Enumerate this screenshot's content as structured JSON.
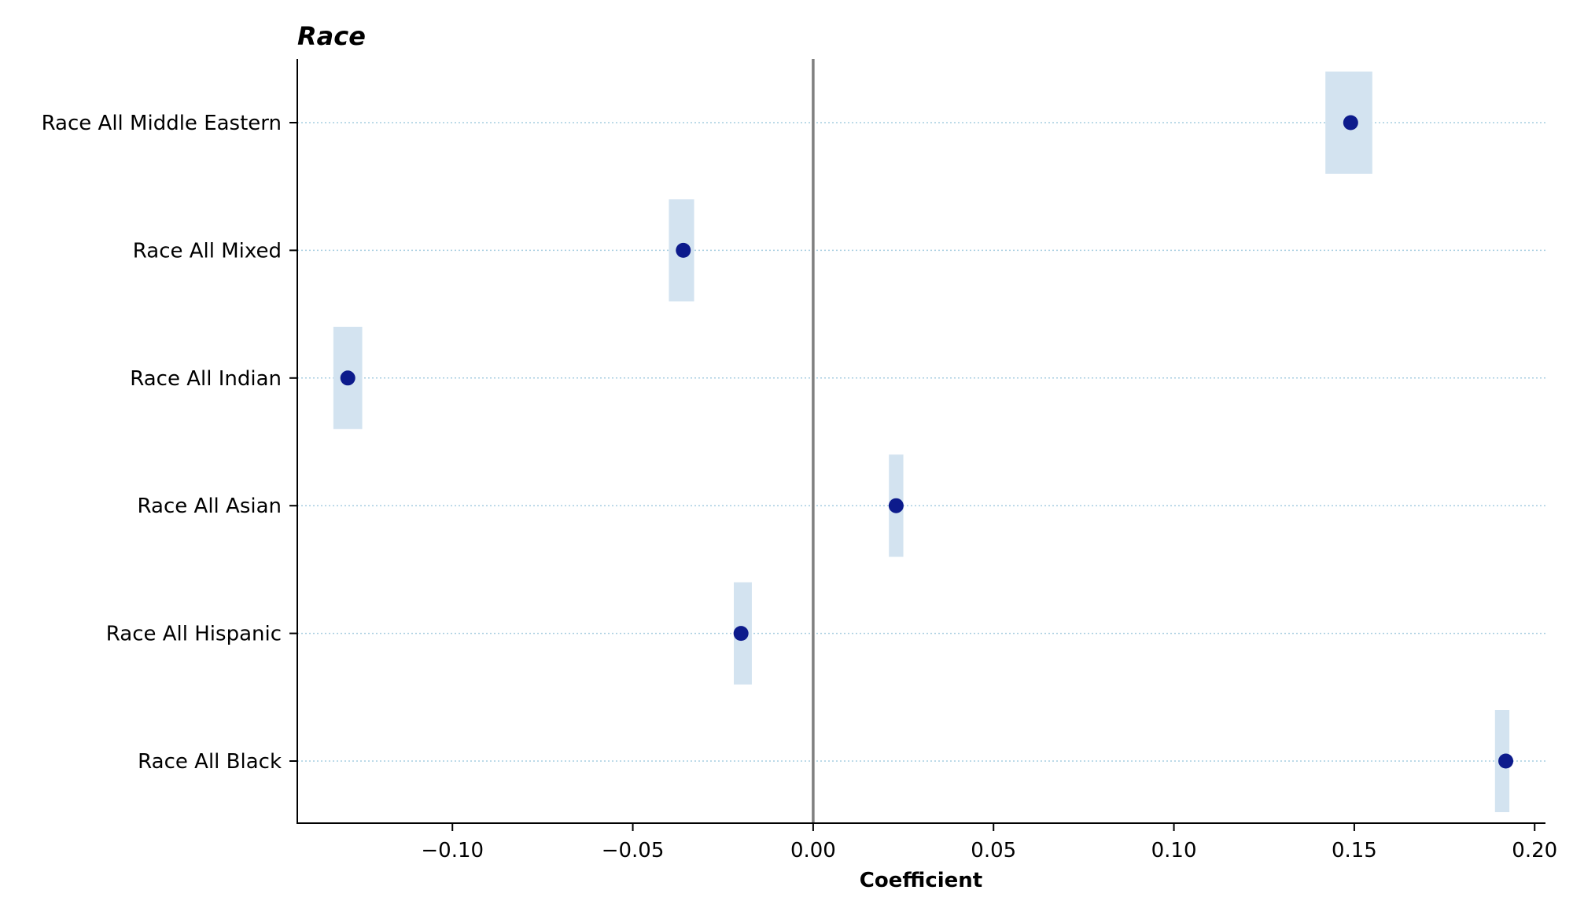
{
  "chart_data": {
    "type": "scatter",
    "title": "Race",
    "xlabel": "Coefficient",
    "ylabel": "",
    "xlim": [
      -0.143,
      0.203
    ],
    "x_ticks": [
      -0.1,
      -0.05,
      0.0,
      0.05,
      0.1,
      0.15,
      0.2
    ],
    "x_tick_labels": [
      "−0.10",
      "−0.05",
      "0.00",
      "0.05",
      "0.10",
      "0.15",
      "0.20"
    ],
    "reference_line": 0.0,
    "categories": [
      "Race All Middle Eastern",
      "Race All Mixed",
      "Race All Indian",
      "Race All Asian",
      "Race All Hispanic",
      "Race All Black"
    ],
    "series": [
      {
        "values": [
          0.149,
          -0.036,
          -0.129,
          0.023,
          -0.02,
          0.192
        ],
        "ci_low": [
          0.142,
          -0.04,
          -0.133,
          0.021,
          -0.022,
          0.189
        ],
        "ci_high": [
          0.155,
          -0.033,
          -0.125,
          0.025,
          -0.017,
          0.193
        ]
      }
    ],
    "grid": "horizontal dotted",
    "colors": {
      "point": "#0d1b8c",
      "ci_band": "#d3e3f0",
      "grid": "#a6cde0",
      "zero_line": "#808080",
      "axis": "#000000"
    }
  }
}
